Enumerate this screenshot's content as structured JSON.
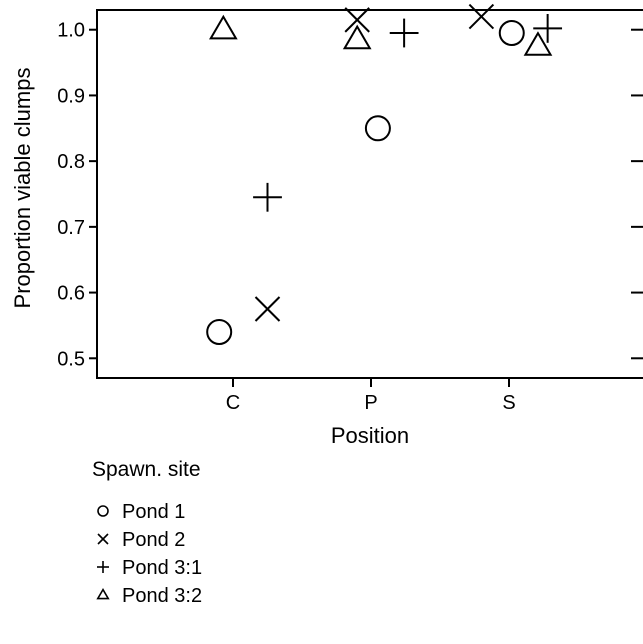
{
  "chart_data": {
    "type": "scatter",
    "categories": [
      "C",
      "P",
      "S"
    ],
    "xlabel": "Position",
    "ylabel": "Proportion viable clumps",
    "ylim": [
      0.47,
      1.03
    ],
    "yticks": [
      "0.5",
      "0.6",
      "0.7",
      "0.8",
      "0.9",
      "1.0"
    ],
    "series": [
      {
        "name": "Pond 1",
        "marker": "circle",
        "points": [
          {
            "x": "C",
            "offset": -0.1,
            "y": 0.54
          },
          {
            "x": "P",
            "offset": 0.05,
            "y": 0.85
          },
          {
            "x": "S",
            "offset": 0.02,
            "y": 0.995
          }
        ]
      },
      {
        "name": "Pond 2",
        "marker": "x",
        "points": [
          {
            "x": "C",
            "offset": 0.25,
            "y": 0.575
          },
          {
            "x": "P",
            "offset": -0.1,
            "y": 1.015
          },
          {
            "x": "S",
            "offset": -0.2,
            "y": 1.02
          }
        ]
      },
      {
        "name": "Pond 3:1",
        "marker": "plus",
        "points": [
          {
            "x": "C",
            "offset": 0.25,
            "y": 0.745
          },
          {
            "x": "P",
            "offset": 0.24,
            "y": 0.995
          },
          {
            "x": "S",
            "offset": 0.28,
            "y": 1.002
          }
        ]
      },
      {
        "name": "Pond 3:2",
        "marker": "triangle",
        "points": [
          {
            "x": "C",
            "offset": -0.07,
            "y": 1.0
          },
          {
            "x": "P",
            "offset": -0.1,
            "y": 0.985
          },
          {
            "x": "S",
            "offset": 0.21,
            "y": 0.975
          }
        ]
      }
    ],
    "legend": {
      "title": "Spawn. site",
      "placement": "bottom-left"
    },
    "grid": false
  }
}
